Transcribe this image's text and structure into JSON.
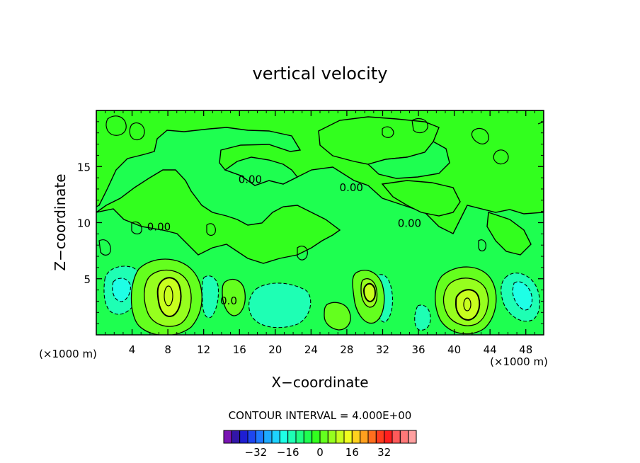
{
  "chart_data": {
    "type": "contour",
    "title": "vertical velocity",
    "xlabel": "X−coordinate",
    "ylabel": "Z−coordinate",
    "x_unit_left": "(×1000 m)",
    "x_unit_right": "(×1000 m)",
    "xlim": [
      0,
      50
    ],
    "ylim": [
      0,
      20
    ],
    "x_ticks": [
      4,
      8,
      12,
      16,
      20,
      24,
      28,
      32,
      36,
      40,
      44,
      48
    ],
    "y_ticks": [
      5,
      10,
      15
    ],
    "contour_interval_text": "CONTOUR INTERVAL = 4.000E+00",
    "contour_interval": 4,
    "contour_labels": [
      {
        "text": "0.00",
        "x": 17.2,
        "z": 13.9
      },
      {
        "text": "0.00",
        "x": 28.5,
        "z": 13.2
      },
      {
        "text": "0.00",
        "x": 35.0,
        "z": 10.0
      },
      {
        "text": "0.00",
        "x": 7.0,
        "z": 9.7
      },
      {
        "text": "0.0",
        "x": 14.8,
        "z": 3.1
      }
    ],
    "features": [
      {
        "kind": "updraft",
        "x": 8.3,
        "z": 3.4,
        "peak": 16
      },
      {
        "kind": "updraft",
        "x": 41.2,
        "z": 2.6,
        "peak": 16
      },
      {
        "kind": "updraft",
        "x": 30.3,
        "z": 4.0,
        "peak": 8
      },
      {
        "kind": "updraft",
        "x": 15.6,
        "z": 3.4,
        "peak": 4
      },
      {
        "kind": "updraft",
        "x": 27.2,
        "z": 1.8,
        "peak": 4
      },
      {
        "kind": "downdraft",
        "x": 2.8,
        "z": 3.5,
        "peak": -8
      },
      {
        "kind": "downdraft",
        "x": 13.0,
        "z": 3.5,
        "peak": -4
      },
      {
        "kind": "downdraft",
        "x": 20.5,
        "z": 2.5,
        "peak": -4
      },
      {
        "kind": "downdraft",
        "x": 33.0,
        "z": 3.5,
        "peak": -4
      },
      {
        "kind": "downdraft",
        "x": 36.5,
        "z": 1.5,
        "peak": -4
      },
      {
        "kind": "downdraft",
        "x": 47.0,
        "z": 3.5,
        "peak": -8
      }
    ],
    "colorbar": {
      "colors": [
        "#7a14b4",
        "#3216a8",
        "#1e1ed2",
        "#1e46f0",
        "#1e78ff",
        "#1eaaff",
        "#1ed2ff",
        "#1effe6",
        "#1effb4",
        "#1eff82",
        "#1eff50",
        "#32ff1e",
        "#64ff1e",
        "#96ff1e",
        "#c8ff1e",
        "#f0ff1e",
        "#ffd21e",
        "#ffa01e",
        "#ff6e1e",
        "#ff3c1e",
        "#ff1e1e",
        "#ff5a5a",
        "#ff7878",
        "#ffa0a0"
      ],
      "tick_values": [
        -32,
        -16,
        0,
        16,
        32
      ],
      "tick_labels": [
        "−32",
        "−16",
        "0",
        "16",
        "32"
      ]
    }
  }
}
